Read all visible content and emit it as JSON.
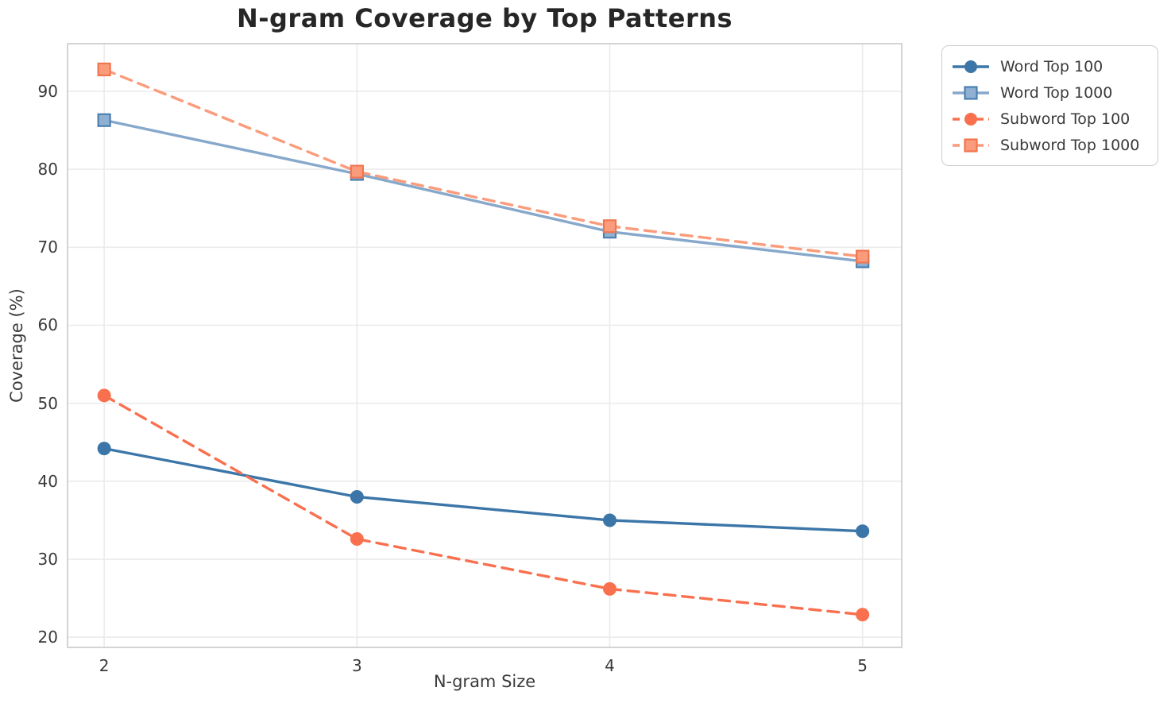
{
  "chart_data": {
    "type": "line",
    "title": "N-gram Coverage by Top Patterns",
    "xlabel": "N-gram Size",
    "ylabel": "Coverage (%)",
    "x": [
      2,
      3,
      4,
      5
    ],
    "xtick_labels": [
      "2",
      "3",
      "4",
      "5"
    ],
    "yticks": [
      20,
      30,
      40,
      50,
      60,
      70,
      80,
      90
    ],
    "xlim": [
      1.855,
      5.155
    ],
    "ylim": [
      18.7,
      96.1
    ],
    "grid": true,
    "legend_position": "outside-upper-right",
    "series": [
      {
        "name": "Word Top 100",
        "values": [
          44.2,
          38.0,
          35.0,
          33.6
        ],
        "color": "#3C76A8",
        "line": "solid",
        "marker": "circle",
        "marker_fill": "#3C76A8",
        "marker_edge": "#3C76A8"
      },
      {
        "name": "Word Top 1000",
        "values": [
          86.3,
          79.4,
          72.0,
          68.2
        ],
        "color": "#86A8CB",
        "line": "solid",
        "marker": "square",
        "marker_fill": "#8FB0D2",
        "marker_edge": "#4C80B0"
      },
      {
        "name": "Subword Top 100",
        "values": [
          51.0,
          32.6,
          26.2,
          22.9
        ],
        "color": "#F9704F",
        "line": "dashed",
        "marker": "circle",
        "marker_fill": "#F9704F",
        "marker_edge": "#F9704F"
      },
      {
        "name": "Subword Top 1000",
        "values": [
          92.8,
          79.7,
          72.7,
          68.8
        ],
        "color": "#FA9C7C",
        "line": "dashed",
        "marker": "square",
        "marker_fill": "#FA9C7C",
        "marker_edge": "#F0764F"
      }
    ],
    "palette": {
      "grid_color": "#EBEBEB",
      "spine_color": "#D4D4D4",
      "tick_text_color": "#3A3A3A",
      "title_color": "#262626",
      "background": "#FFFFFF"
    }
  }
}
